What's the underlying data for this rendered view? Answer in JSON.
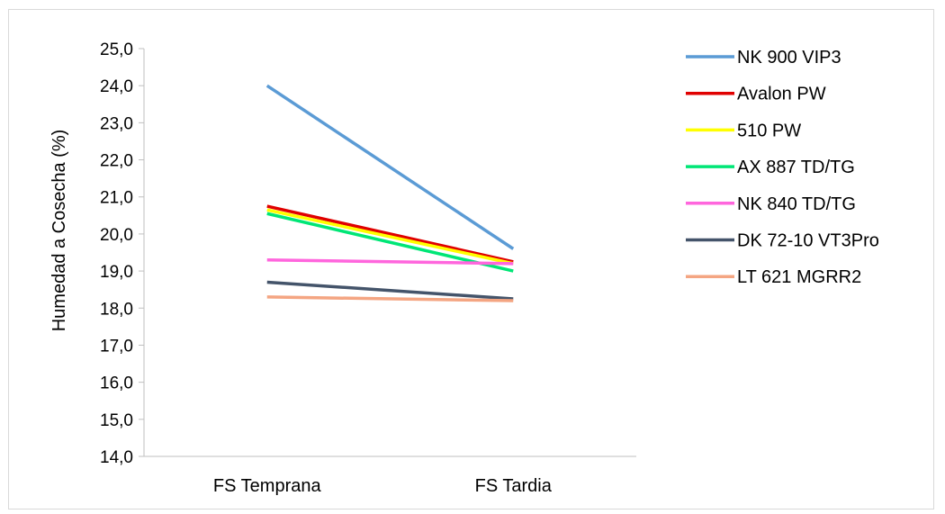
{
  "chart_data": {
    "type": "line",
    "title": "",
    "xlabel": "",
    "ylabel": "Humedad a Cosecha (%)",
    "categories": [
      "FS Temprana",
      "FS Tardia"
    ],
    "ylim": [
      14.0,
      25.0
    ],
    "yticks": [
      "14,0",
      "15,0",
      "16,0",
      "17,0",
      "18,0",
      "19,0",
      "20,0",
      "21,0",
      "22,0",
      "23,0",
      "24,0",
      "25,0"
    ],
    "grid": false,
    "legend_position": "right",
    "series": [
      {
        "name": "NK 900 VIP3",
        "color": "#5b9bd5",
        "values": [
          24.0,
          19.6
        ]
      },
      {
        "name": "Avalon PW",
        "color": "#e00000",
        "values": [
          20.75,
          19.25
        ]
      },
      {
        "name": "510 PW",
        "color": "#ffff00",
        "values": [
          20.65,
          19.2
        ]
      },
      {
        "name": "AX 887 TD/TG",
        "color": "#00e676",
        "values": [
          20.55,
          19.0
        ]
      },
      {
        "name": "NK 840 TD/TG",
        "color": "#ff66dd",
        "values": [
          19.3,
          19.2
        ]
      },
      {
        "name": "DK 72-10 VT3Pro",
        "color": "#44546a",
        "values": [
          18.7,
          18.25
        ]
      },
      {
        "name": "LT 621 MGRR2",
        "color": "#f4a582",
        "values": [
          18.3,
          18.2
        ]
      }
    ]
  }
}
